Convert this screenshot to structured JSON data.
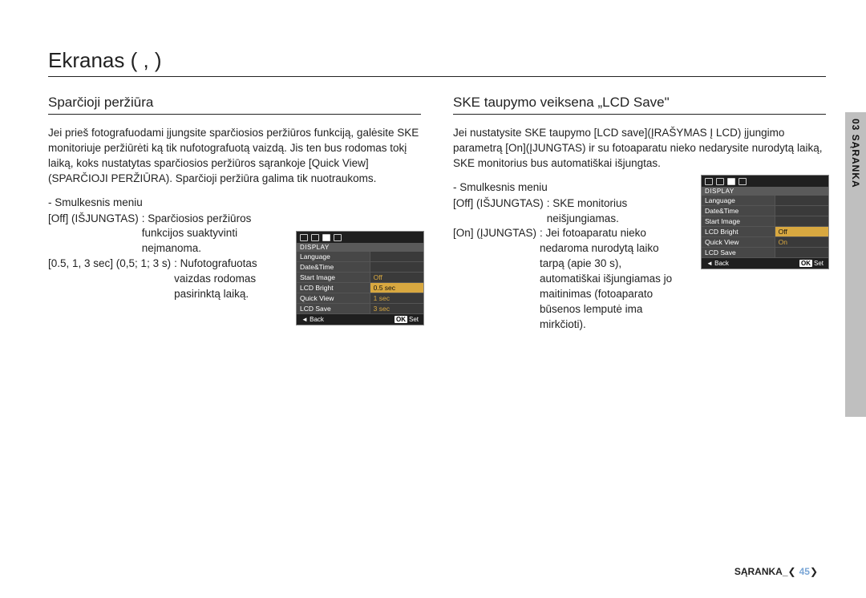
{
  "page_title": "Ekranas (  ,     )",
  "side_tab": "03 SĄRANKA",
  "footer_label": "SĄRANKA_",
  "footer_page": "45",
  "left": {
    "title": "Sparčioji peržiūra",
    "body": "Jei prieš fotografuodami įjungsite sparčiosios peržiūros funkciją, galėsite SKE monitoriuje peržiūrėti ką tik nufotografuotą vaizdą. Jis ten bus rodomas tokį laiką, koks nustatytas sparčiosios peržiūros sąrankoje [Quick View](SPARČIOJI PERŽIŪRA). Sparčioji peržiūra galima tik nuotraukoms.",
    "submenu_label": "- Smulkesnis meniu",
    "options": [
      {
        "key": "[Off] (IŠJUNGTAS)",
        "val": ": Sparčiosios peržiūros funkcijos suaktyvinti neįmanoma."
      },
      {
        "key": "[0.5, 1, 3 sec] (0,5; 1; 3 s)",
        "val": ": Nufotografuotas vaizdas rodomas pasirinktą laiką."
      }
    ],
    "lcd": {
      "header": "DISPLAY",
      "rows": [
        {
          "l": "Language",
          "r": ""
        },
        {
          "l": "Date&Time",
          "r": ""
        },
        {
          "l": "Start Image",
          "r": "Off"
        },
        {
          "l": "LCD Bright",
          "r": "0.5 sec",
          "sel": true
        },
        {
          "l": "Quick View",
          "r": "1 sec"
        },
        {
          "l": "LCD Save",
          "r": "3 sec"
        }
      ],
      "footer_left": "◄ Back",
      "footer_right_ok": "OK",
      "footer_right": "Set"
    }
  },
  "right": {
    "title": "SKE taupymo veiksena „LCD Save\"",
    "body": "Jei nustatysite SKE taupymo [LCD save](ĮRAŠYMAS Į LCD) įjungimo parametrą [On](ĮJUNGTAS) ir su fotoaparatu nieko nedarysite nurodytą laiką, SKE monitorius bus automatiškai išjungtas.",
    "submenu_label": "- Smulkesnis meniu",
    "options": [
      {
        "key": "[Off] (IŠJUNGTAS)",
        "val": ": SKE monitorius neišjungiamas."
      },
      {
        "key": "[On] (ĮJUNGTAS)",
        "val": ": Jei fotoaparatu nieko nedaroma nurodytą laiko tarpą (apie 30 s), automatiškai išjungiamas jo maitinimas (fotoaparato būsenos lemputė ima mirkčioti)."
      }
    ],
    "lcd": {
      "header": "DISPLAY",
      "rows": [
        {
          "l": "Language",
          "r": ""
        },
        {
          "l": "Date&Time",
          "r": ""
        },
        {
          "l": "Start Image",
          "r": ""
        },
        {
          "l": "LCD Bright",
          "r": "Off",
          "sel": true
        },
        {
          "l": "Quick View",
          "r": "On"
        },
        {
          "l": "LCD Save",
          "r": ""
        }
      ],
      "footer_left": "◄ Back",
      "footer_right_ok": "OK",
      "footer_right": "Set"
    }
  }
}
